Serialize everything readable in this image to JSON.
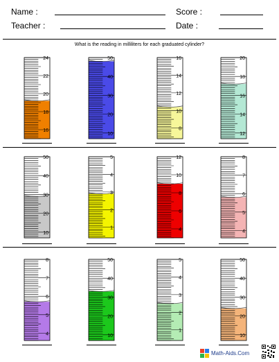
{
  "header": {
    "name_label": "Name :",
    "teacher_label": "Teacher :",
    "score_label": "Score :",
    "date_label": "Date :"
  },
  "instructions": "What is the reading in milliliters for each graduated cylinder?",
  "cylinders": [
    {
      "min": 15,
      "max": 24,
      "step": 2,
      "start": 16,
      "reading": 19.2,
      "color": "#f08000"
    },
    {
      "min": 7,
      "max": 50,
      "step": 10,
      "start": 10,
      "reading": 48,
      "color": "#4a4ae8"
    },
    {
      "min": 6.8,
      "max": 16,
      "step": 2,
      "start": 8,
      "reading": 10.4,
      "color": "#f7f79a"
    },
    {
      "min": 11.4,
      "max": 20,
      "step": 2,
      "start": 12,
      "reading": 17.2,
      "color": "#b4e8d4"
    },
    {
      "min": 7,
      "max": 50,
      "step": 10,
      "start": 10,
      "reading": 29,
      "color": "#c8c8c8"
    },
    {
      "min": 0.4,
      "max": 5,
      "step": 1,
      "start": 1,
      "reading": 2.9,
      "color": "#f4f400"
    },
    {
      "min": 3,
      "max": 12,
      "step": 2,
      "start": 4,
      "reading": 9,
      "color": "#ee0000"
    },
    {
      "min": 3.6,
      "max": 8,
      "step": 1,
      "start": 4,
      "reading": 5.8,
      "color": "#f4b4b4"
    },
    {
      "min": 3.6,
      "max": 8,
      "step": 1,
      "start": 4,
      "reading": 5.7,
      "color": "#b47ae8"
    },
    {
      "min": 7,
      "max": 50,
      "step": 10,
      "start": 10,
      "reading": 33,
      "color": "#1cc81c"
    },
    {
      "min": 0.4,
      "max": 5,
      "step": 1,
      "start": 1,
      "reading": 2.5,
      "color": "#b4ecb4"
    },
    {
      "min": 7,
      "max": 50,
      "step": 10,
      "start": 10,
      "reading": 24,
      "color": "#f4b47a"
    }
  ],
  "footer": {
    "brand": "Math-Aids.Com"
  }
}
